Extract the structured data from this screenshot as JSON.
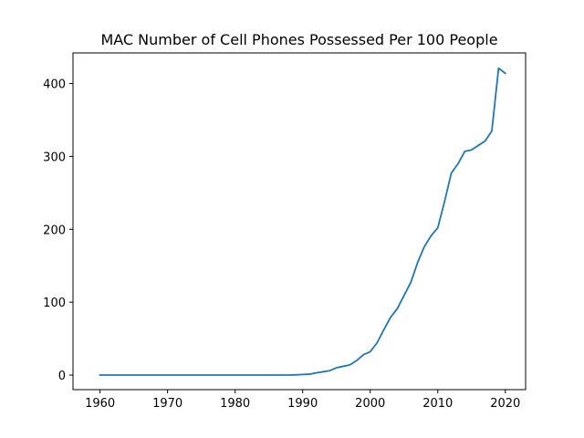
{
  "chart_data": {
    "type": "line",
    "title": "MAC Number of Cell Phones Possessed Per 100 People",
    "xlabel": "",
    "ylabel": "",
    "xlim": [
      1956,
      2023
    ],
    "ylim": [
      -20,
      442
    ],
    "xticks": [
      1960,
      1970,
      1980,
      1990,
      2000,
      2010,
      2020
    ],
    "yticks": [
      0,
      100,
      200,
      300,
      400
    ],
    "grid": false,
    "legend": "none",
    "line_color": "#1f77b4",
    "series": [
      {
        "x": [
          1960,
          1961,
          1962,
          1963,
          1964,
          1965,
          1966,
          1967,
          1968,
          1969,
          1970,
          1971,
          1972,
          1973,
          1974,
          1975,
          1976,
          1977,
          1978,
          1979,
          1980,
          1981,
          1982,
          1983,
          1984,
          1985,
          1986,
          1987,
          1988,
          1989,
          1990,
          1991,
          1992,
          1993,
          1994,
          1995,
          1996,
          1997,
          1998,
          1999,
          2000,
          2001,
          2002,
          2003,
          2004,
          2005,
          2006,
          2007,
          2008,
          2009,
          2010,
          2011,
          2012,
          2013,
          2014,
          2015,
          2016,
          2017,
          2018,
          2019,
          2020
        ],
        "values": [
          0,
          0,
          0,
          0,
          0,
          0,
          0,
          0,
          0,
          0,
          0,
          0,
          0,
          0,
          0,
          0,
          0,
          0,
          0,
          0,
          0,
          0,
          0,
          0,
          0,
          0,
          0,
          0,
          0,
          0.3,
          0.8,
          1.2,
          3,
          4.5,
          6,
          10,
          12,
          14,
          20,
          28,
          32,
          44,
          62,
          79,
          91,
          109,
          127,
          154,
          176,
          191,
          202,
          238,
          277,
          290,
          307,
          309,
          315,
          321,
          335,
          421,
          414
        ]
      }
    ]
  }
}
